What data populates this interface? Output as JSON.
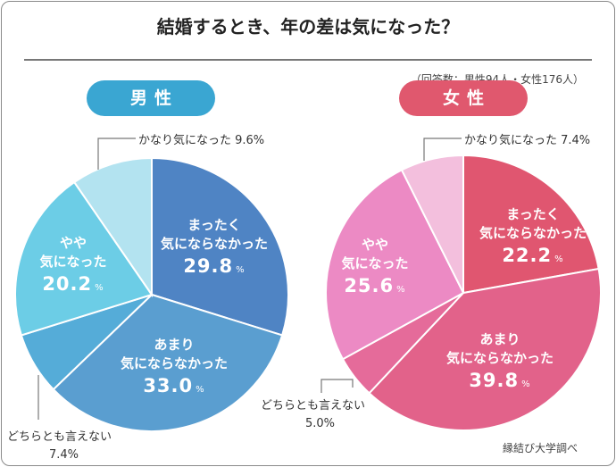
{
  "title": "結婚するとき、年の差は気になった？",
  "respondents": "（回答数：男性94人・女性176人）",
  "source": "縁結び大学調べ",
  "percent_sign": "%",
  "chart_data": [
    {
      "type": "pie",
      "title": "男性",
      "pill_color": "#3aa6d2",
      "categories": [
        "まったく気にならなかった",
        "あまり気にならなかった",
        "どちらとも言えない",
        "やや気になった",
        "かなり気になった"
      ],
      "values": [
        29.8,
        33.0,
        7.4,
        20.2,
        9.6
      ],
      "colors": [
        "#4f84c4",
        "#5a9ed0",
        "#55acd8",
        "#6ccde6",
        "#b3e3f0"
      ],
      "labels": {
        "a1": "まったく",
        "a2": "気にならなかった",
        "a_val": "29.8",
        "b1": "あまり",
        "b2": "気にならなかった",
        "b_val": "33.0",
        "c": "どちらとも言えない",
        "c_val": "7.4%",
        "d1": "やや",
        "d2": "気になった",
        "d_val": "20.2",
        "e": "かなり気になった 9.6%"
      }
    },
    {
      "type": "pie",
      "title": "女性",
      "pill_color": "#e0586e",
      "categories": [
        "まったく気にならなかった",
        "あまり気にならなかった",
        "どちらとも言えない",
        "やや気になった",
        "かなり気になった"
      ],
      "values": [
        22.2,
        39.8,
        5.0,
        25.6,
        7.4
      ],
      "colors": [
        "#e05670",
        "#e2628a",
        "#e56b9a",
        "#ec8ac4",
        "#f3bfdd"
      ],
      "labels": {
        "a1": "まったく",
        "a2": "気にならなかった",
        "a_val": "22.2",
        "b1": "あまり",
        "b2": "気にならなかった",
        "b_val": "39.8",
        "c": "どちらとも言えない",
        "c_val": "5.0%",
        "d1": "やや",
        "d2": "気になった",
        "d_val": "25.6",
        "e": "かなり気になった 7.4%"
      }
    }
  ]
}
